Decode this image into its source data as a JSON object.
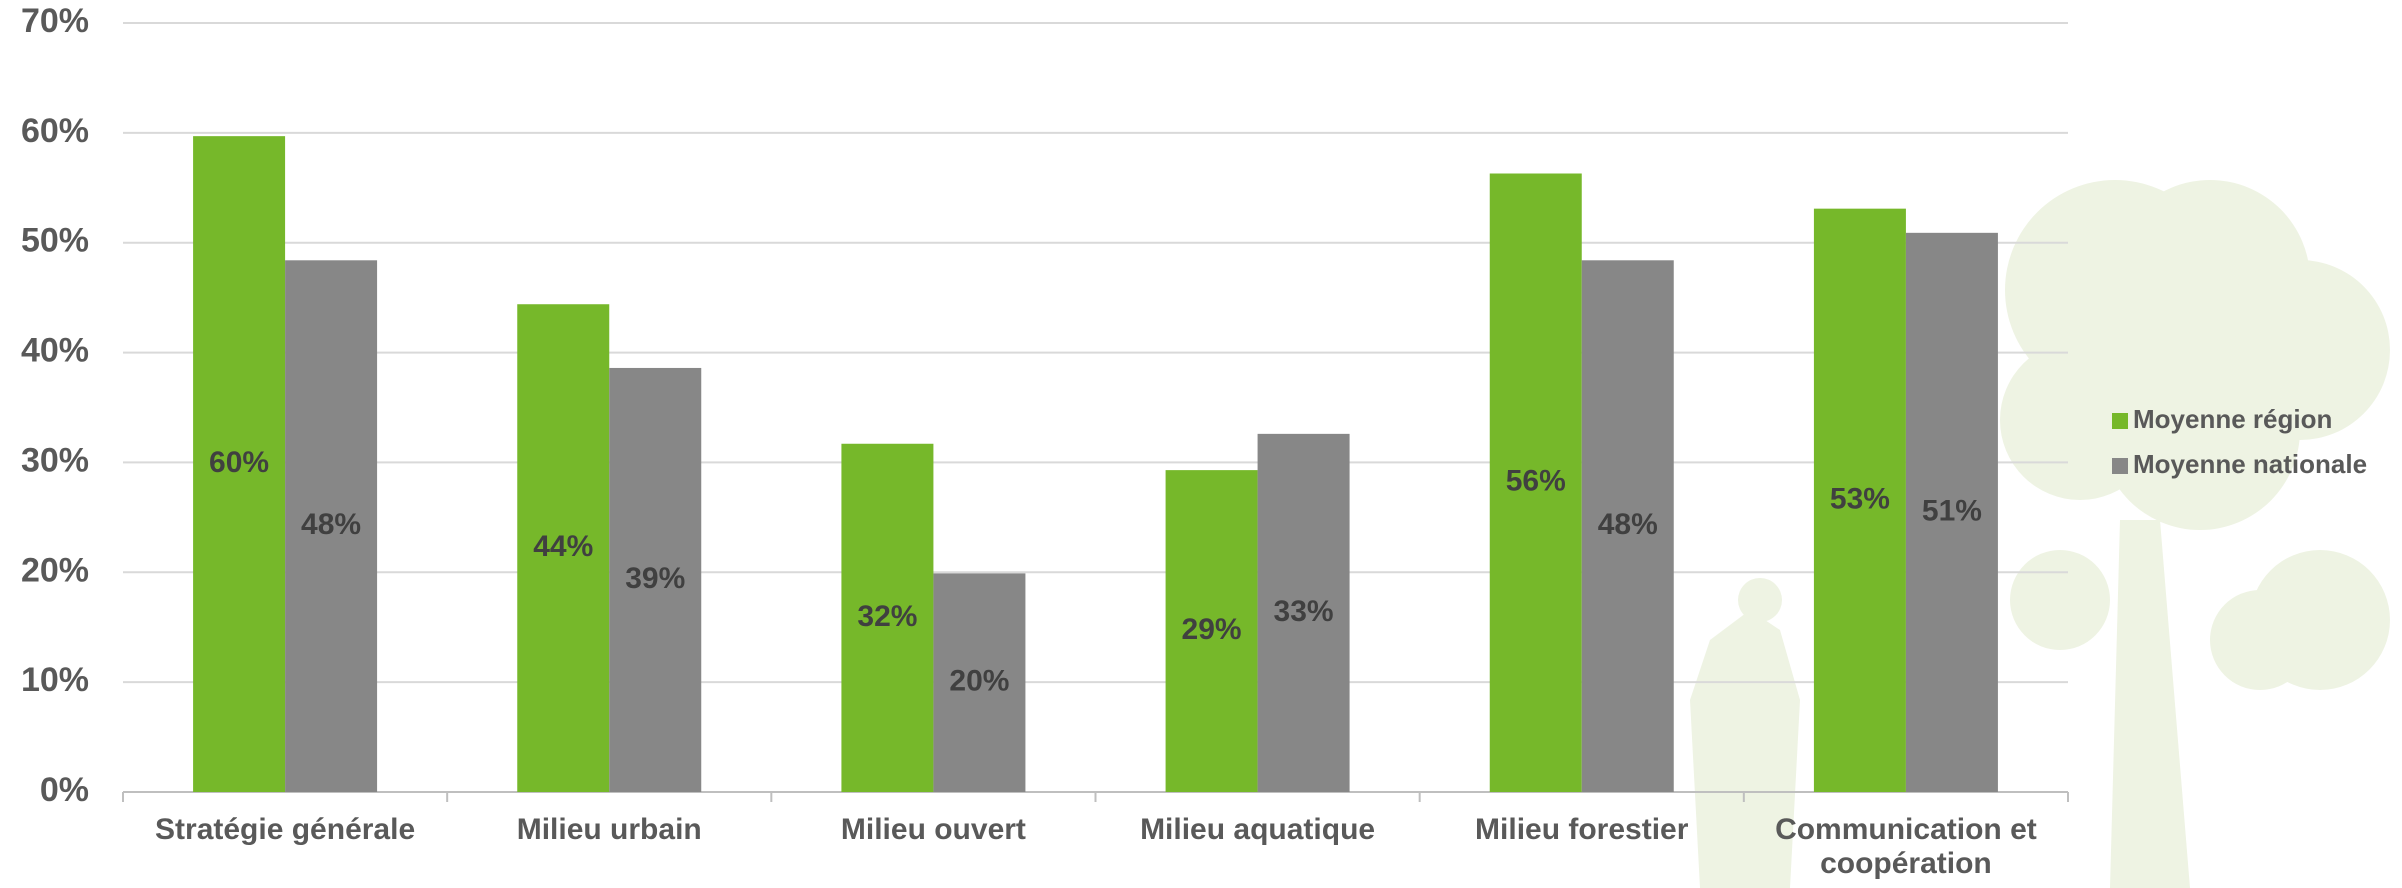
{
  "chart_data": {
    "type": "bar",
    "categories": [
      "Stratégie générale",
      "Milieu urbain",
      "Milieu ouvert",
      "Milieu aquatique",
      "Milieu forestier",
      "Communication et coopération"
    ],
    "series": [
      {
        "name": "Moyenne région",
        "color": "#76b82a",
        "values": [
          59.7,
          44.4,
          31.7,
          29.3,
          56.3,
          53.1
        ],
        "value_labels": [
          "60%",
          "44%",
          "32%",
          "29%",
          "56%",
          "53%"
        ]
      },
      {
        "name": "Moyenne nationale",
        "color": "#878787",
        "values": [
          48.4,
          38.6,
          19.9,
          32.6,
          48.4,
          50.9
        ],
        "value_labels": [
          "48%",
          "39%",
          "20%",
          "33%",
          "48%",
          "51%"
        ]
      }
    ],
    "ylim": [
      0,
      70
    ],
    "yticks": [
      {
        "value": 0,
        "label": "0%"
      },
      {
        "value": 10,
        "label": "10%"
      },
      {
        "value": 20,
        "label": "20%"
      },
      {
        "value": 30,
        "label": "30%"
      },
      {
        "value": 40,
        "label": "40%"
      },
      {
        "value": 50,
        "label": "50%"
      },
      {
        "value": 60,
        "label": "60%"
      },
      {
        "value": 70,
        "label": "70%"
      }
    ],
    "grid": true,
    "legend": "right"
  }
}
